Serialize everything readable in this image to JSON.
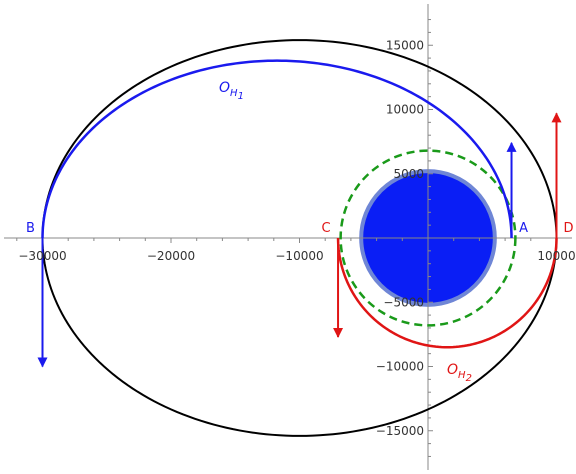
{
  "chart_data": {
    "type": "diagram",
    "x_axis": {
      "range": [
        -32000,
        12000
      ],
      "ticks": [
        {
          "value": -30000,
          "label": "−30000"
        },
        {
          "value": -20000,
          "label": "−20000"
        },
        {
          "value": -10000,
          "label": "−10000"
        },
        {
          "value": 10000,
          "label": "10000"
        }
      ]
    },
    "y_axis": {
      "range": [
        -17500,
        18000
      ],
      "ticks": [
        {
          "value": 15000,
          "label": "15000"
        },
        {
          "value": 10000,
          "label": "10000"
        },
        {
          "value": 5000,
          "label": "5000"
        },
        {
          "value": -5000,
          "label": "−5000"
        },
        {
          "value": -10000,
          "label": "−10000"
        },
        {
          "value": -15000,
          "label": "−15000"
        }
      ]
    },
    "planet": {
      "radius": 5200,
      "fill": "#0a1ef5",
      "stroke": "#6f86d6"
    },
    "dashed_orbit": {
      "radius": 6800,
      "color": "#1a9a1a"
    },
    "outer_ellipse": {
      "x_min": -30000,
      "x_max": 10000,
      "semi_minor": 15400,
      "color": "#000000"
    },
    "orbit_h1": {
      "x_min": -30000,
      "x_max": 6500,
      "semi_minor": 13800,
      "color": "#1a1aee",
      "label_main": "O",
      "label_sub": "H",
      "label_index": "1"
    },
    "orbit_h2": {
      "x_min": -7000,
      "x_max": 10000,
      "semi_minor": 8500,
      "color": "#e01515",
      "label_main": "O",
      "label_sub": "H",
      "label_index": "2"
    },
    "points": [
      {
        "name": "B",
        "x": -30000,
        "color": "#1a1aee"
      },
      {
        "name": "C",
        "x": -7000,
        "color": "#e01515"
      },
      {
        "name": "A",
        "x": 6500,
        "color": "#1a1aee"
      },
      {
        "name": "D",
        "x": 10000,
        "color": "#e01515"
      }
    ],
    "arrows": [
      {
        "x": 6500,
        "y_from": 0,
        "y_to": 7400,
        "color": "#1a1aee"
      },
      {
        "x": 10000,
        "y_from": 0,
        "y_to": 9700,
        "color": "#e01515"
      },
      {
        "x": -30000,
        "y_from": 0,
        "y_to": -10000,
        "color": "#1a1aee"
      },
      {
        "x": -7000,
        "y_from": 0,
        "y_to": -7700,
        "color": "#e01515"
      }
    ]
  }
}
